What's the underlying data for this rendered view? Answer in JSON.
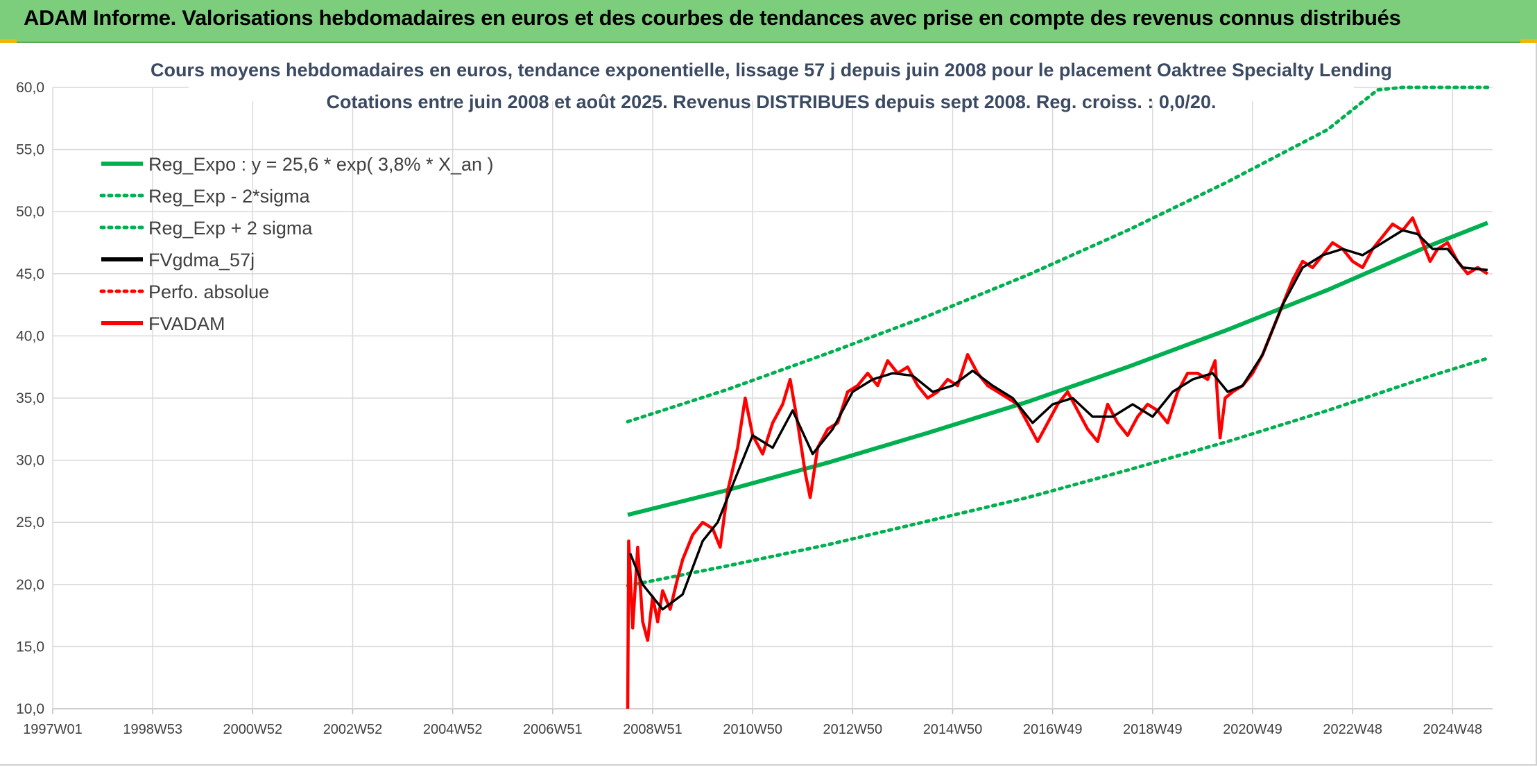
{
  "header": {
    "title": "ADAM Informe. Valorisations hebdomadaires en euros et des courbes de tendances avec prise en compte des revenus connus distribués"
  },
  "chart_data": {
    "type": "line",
    "title": "Cours moyens hebdomadaires en euros, tendance exponentielle, lissage 57 j depuis juin 2008 pour le placement Oaktree Specialty Lending",
    "subtitle": "Cotations entre juin 2008 et août 2025. Revenus DISTRIBUES depuis sept 2008. Reg. croiss. : 0,0/20.",
    "xlabel": "",
    "ylabel": "",
    "ylim": [
      10,
      60
    ],
    "xlim": [
      1997.0,
      2025.8
    ],
    "y_ticks": [
      "10,0",
      "15,0",
      "20,0",
      "25,0",
      "30,0",
      "35,0",
      "40,0",
      "45,0",
      "50,0",
      "55,0",
      "60,0"
    ],
    "x_ticks": [
      {
        "label": "1997W01",
        "t": 1997.0
      },
      {
        "label": "1998W53",
        "t": 1999.0
      },
      {
        "label": "2000W52",
        "t": 2001.0
      },
      {
        "label": "2002W52",
        "t": 2003.0
      },
      {
        "label": "2004W52",
        "t": 2005.0
      },
      {
        "label": "2006W51",
        "t": 2007.0
      },
      {
        "label": "2008W51",
        "t": 2009.0
      },
      {
        "label": "2010W50",
        "t": 2011.0
      },
      {
        "label": "2012W50",
        "t": 2013.0
      },
      {
        "label": "2014W50",
        "t": 2015.0
      },
      {
        "label": "2016W49",
        "t": 2017.0
      },
      {
        "label": "2018W49",
        "t": 2019.0
      },
      {
        "label": "2020W49",
        "t": 2021.0
      },
      {
        "label": "2022W48",
        "t": 2023.0
      },
      {
        "label": "2024W48",
        "t": 2025.0
      }
    ],
    "grid": true,
    "legend_position": "top-left",
    "series": [
      {
        "name": "Reg_Expo : y = 25,6 * exp( 3,8% *  X_an )",
        "color": "#00b050",
        "style": "solid",
        "points": [
          [
            2008.5,
            25.6
          ],
          [
            2010.5,
            27.6
          ],
          [
            2012.5,
            29.8
          ],
          [
            2014.5,
            32.2
          ],
          [
            2016.5,
            34.7
          ],
          [
            2018.5,
            37.5
          ],
          [
            2020.5,
            40.5
          ],
          [
            2022.5,
            43.7
          ],
          [
            2024.5,
            47.2
          ],
          [
            2025.7,
            49.1
          ]
        ]
      },
      {
        "name": "Reg_Exp - 2*sigma",
        "color": "#00b050",
        "style": "dotted",
        "points": [
          [
            2008.5,
            19.9
          ],
          [
            2010.5,
            21.5
          ],
          [
            2012.5,
            23.2
          ],
          [
            2014.5,
            25.1
          ],
          [
            2016.5,
            27.0
          ],
          [
            2018.5,
            29.2
          ],
          [
            2020.5,
            31.5
          ],
          [
            2022.5,
            34.0
          ],
          [
            2024.5,
            36.7
          ],
          [
            2025.7,
            38.2
          ]
        ]
      },
      {
        "name": "Reg_Exp + 2 sigma",
        "color": "#00b050",
        "style": "dotted",
        "points": [
          [
            2008.5,
            33.1
          ],
          [
            2010.5,
            35.7
          ],
          [
            2012.5,
            38.6
          ],
          [
            2014.5,
            41.6
          ],
          [
            2016.5,
            44.9
          ],
          [
            2018.5,
            48.5
          ],
          [
            2020.5,
            52.4
          ],
          [
            2022.5,
            56.6
          ],
          [
            2023.5,
            59.8
          ],
          [
            2024.0,
            60.0
          ],
          [
            2025.7,
            60.0
          ]
        ]
      },
      {
        "name": "FVgdma_57j",
        "color": "#000000",
        "style": "solid",
        "points": [
          [
            2008.55,
            22.5
          ],
          [
            2008.8,
            20.0
          ],
          [
            2009.2,
            18.0
          ],
          [
            2009.6,
            19.2
          ],
          [
            2010.0,
            23.5
          ],
          [
            2010.3,
            25.0
          ],
          [
            2010.6,
            28.0
          ],
          [
            2011.0,
            32.0
          ],
          [
            2011.4,
            31.0
          ],
          [
            2011.8,
            34.0
          ],
          [
            2012.2,
            30.5
          ],
          [
            2012.6,
            32.5
          ],
          [
            2013.0,
            35.5
          ],
          [
            2013.4,
            36.5
          ],
          [
            2013.8,
            37.0
          ],
          [
            2014.2,
            36.8
          ],
          [
            2014.6,
            35.5
          ],
          [
            2015.0,
            36.0
          ],
          [
            2015.4,
            37.2
          ],
          [
            2015.8,
            36.0
          ],
          [
            2016.2,
            35.0
          ],
          [
            2016.6,
            33.0
          ],
          [
            2017.0,
            34.5
          ],
          [
            2017.4,
            35.0
          ],
          [
            2017.8,
            33.5
          ],
          [
            2018.2,
            33.5
          ],
          [
            2018.6,
            34.5
          ],
          [
            2019.0,
            33.5
          ],
          [
            2019.4,
            35.5
          ],
          [
            2019.8,
            36.5
          ],
          [
            2020.2,
            37.0
          ],
          [
            2020.5,
            35.5
          ],
          [
            2020.8,
            36.0
          ],
          [
            2021.2,
            38.5
          ],
          [
            2021.6,
            42.5
          ],
          [
            2022.0,
            45.5
          ],
          [
            2022.4,
            46.5
          ],
          [
            2022.8,
            47.0
          ],
          [
            2023.2,
            46.5
          ],
          [
            2023.6,
            47.5
          ],
          [
            2024.0,
            48.5
          ],
          [
            2024.3,
            48.2
          ],
          [
            2024.6,
            47.0
          ],
          [
            2024.9,
            47.0
          ],
          [
            2025.2,
            45.5
          ],
          [
            2025.7,
            45.3
          ]
        ]
      },
      {
        "name": "Perfo. absolue",
        "color": "#ff0000",
        "style": "dotted",
        "points": []
      },
      {
        "name": "FVADAM",
        "color": "#ff0000",
        "style": "solid",
        "points": [
          [
            2008.5,
            10.0
          ],
          [
            2008.52,
            23.5
          ],
          [
            2008.6,
            16.5
          ],
          [
            2008.7,
            23.0
          ],
          [
            2008.8,
            17.0
          ],
          [
            2008.9,
            15.5
          ],
          [
            2009.0,
            19.0
          ],
          [
            2009.1,
            17.0
          ],
          [
            2009.2,
            19.5
          ],
          [
            2009.35,
            18.0
          ],
          [
            2009.5,
            20.5
          ],
          [
            2009.6,
            22.0
          ],
          [
            2009.8,
            24.0
          ],
          [
            2010.0,
            25.0
          ],
          [
            2010.2,
            24.5
          ],
          [
            2010.35,
            23.0
          ],
          [
            2010.5,
            27.5
          ],
          [
            2010.7,
            31.0
          ],
          [
            2010.85,
            35.0
          ],
          [
            2011.0,
            32.0
          ],
          [
            2011.2,
            30.5
          ],
          [
            2011.4,
            33.0
          ],
          [
            2011.6,
            34.5
          ],
          [
            2011.75,
            36.5
          ],
          [
            2011.9,
            33.0
          ],
          [
            2012.05,
            29.0
          ],
          [
            2012.15,
            27.0
          ],
          [
            2012.3,
            31.0
          ],
          [
            2012.5,
            32.5
          ],
          [
            2012.7,
            33.0
          ],
          [
            2012.9,
            35.5
          ],
          [
            2013.1,
            36.0
          ],
          [
            2013.3,
            37.0
          ],
          [
            2013.5,
            36.0
          ],
          [
            2013.7,
            38.0
          ],
          [
            2013.9,
            37.0
          ],
          [
            2014.1,
            37.5
          ],
          [
            2014.3,
            36.0
          ],
          [
            2014.5,
            35.0
          ],
          [
            2014.7,
            35.5
          ],
          [
            2014.9,
            36.5
          ],
          [
            2015.1,
            36.0
          ],
          [
            2015.3,
            38.5
          ],
          [
            2015.5,
            37.0
          ],
          [
            2015.7,
            36.0
          ],
          [
            2015.9,
            35.5
          ],
          [
            2016.1,
            35.0
          ],
          [
            2016.3,
            34.5
          ],
          [
            2016.5,
            33.0
          ],
          [
            2016.7,
            31.5
          ],
          [
            2016.9,
            33.0
          ],
          [
            2017.1,
            34.5
          ],
          [
            2017.3,
            35.5
          ],
          [
            2017.5,
            34.0
          ],
          [
            2017.7,
            32.5
          ],
          [
            2017.9,
            31.5
          ],
          [
            2018.1,
            34.5
          ],
          [
            2018.3,
            33.0
          ],
          [
            2018.5,
            32.0
          ],
          [
            2018.7,
            33.5
          ],
          [
            2018.9,
            34.5
          ],
          [
            2019.1,
            34.0
          ],
          [
            2019.3,
            33.0
          ],
          [
            2019.5,
            35.5
          ],
          [
            2019.7,
            37.0
          ],
          [
            2019.9,
            37.0
          ],
          [
            2020.1,
            36.5
          ],
          [
            2020.25,
            38.0
          ],
          [
            2020.35,
            31.8
          ],
          [
            2020.45,
            35.0
          ],
          [
            2020.6,
            35.5
          ],
          [
            2020.8,
            36.0
          ],
          [
            2021.0,
            37.0
          ],
          [
            2021.2,
            38.5
          ],
          [
            2021.4,
            40.5
          ],
          [
            2021.6,
            42.5
          ],
          [
            2021.8,
            44.5
          ],
          [
            2022.0,
            46.0
          ],
          [
            2022.2,
            45.5
          ],
          [
            2022.4,
            46.5
          ],
          [
            2022.6,
            47.5
          ],
          [
            2022.8,
            47.0
          ],
          [
            2023.0,
            46.0
          ],
          [
            2023.2,
            45.5
          ],
          [
            2023.4,
            47.0
          ],
          [
            2023.6,
            48.0
          ],
          [
            2023.8,
            49.0
          ],
          [
            2024.0,
            48.5
          ],
          [
            2024.2,
            49.5
          ],
          [
            2024.4,
            47.5
          ],
          [
            2024.55,
            46.0
          ],
          [
            2024.7,
            47.0
          ],
          [
            2024.9,
            47.5
          ],
          [
            2025.1,
            46.0
          ],
          [
            2025.3,
            45.0
          ],
          [
            2025.5,
            45.5
          ],
          [
            2025.7,
            45.0
          ]
        ]
      }
    ]
  }
}
